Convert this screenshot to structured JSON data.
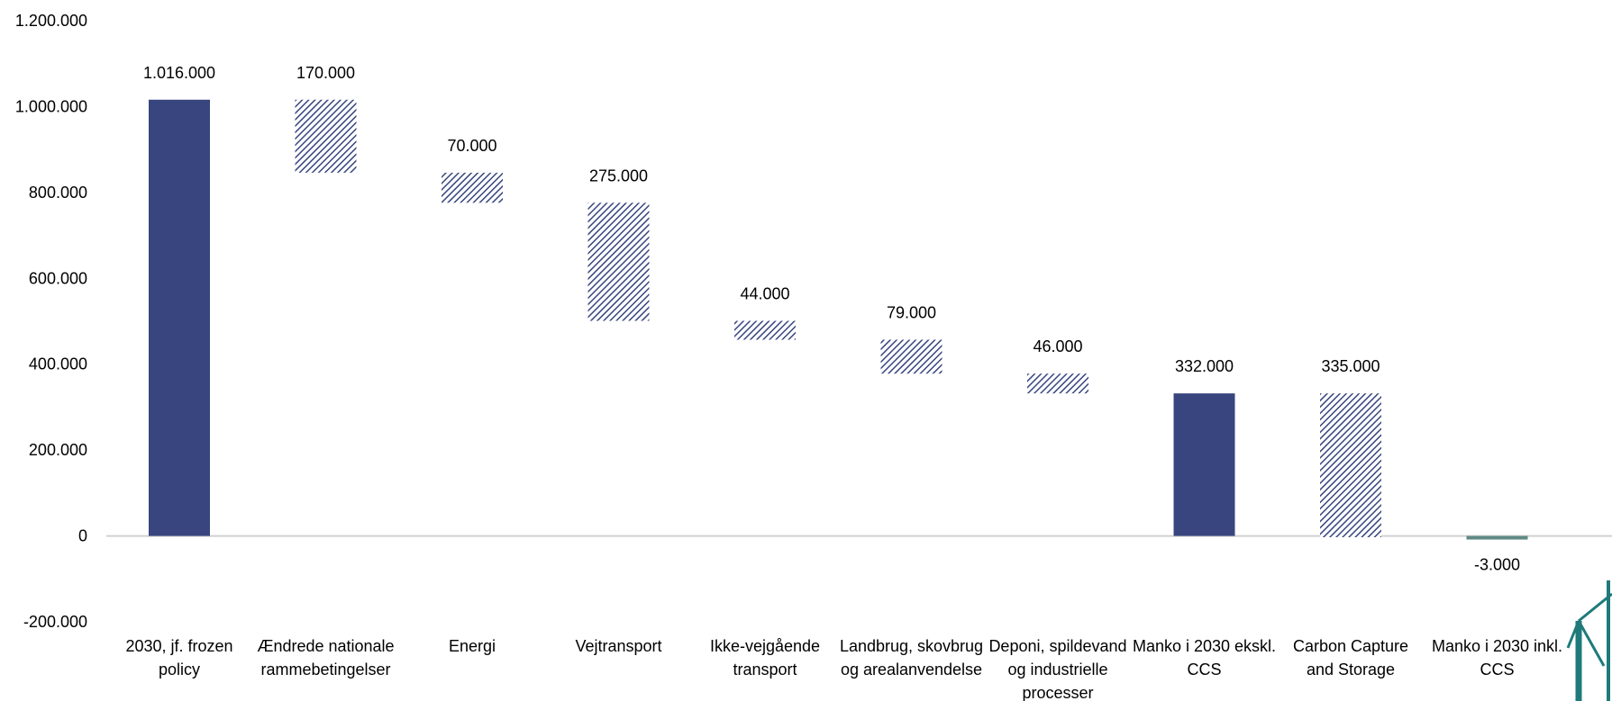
{
  "chart_data": {
    "type": "bar",
    "subtype": "waterfall",
    "title": "",
    "xlabel": "",
    "ylabel": "",
    "ylim": [
      -200000,
      1200000
    ],
    "y_ticks": [
      -200000,
      0,
      200000,
      400000,
      600000,
      800000,
      1000000,
      1200000
    ],
    "y_tick_labels": [
      "-200.000",
      "0",
      "200.000",
      "400.000",
      "600.000",
      "800.000",
      "1.000.000",
      "1.200.000"
    ],
    "grid": false,
    "legend": "none",
    "categories": [
      [
        "2030, jf. frozen",
        "policy"
      ],
      [
        "Ændrede nationale",
        "rammebetingelser"
      ],
      [
        "Energi"
      ],
      [
        "Vejtransport"
      ],
      [
        "Ikke-vejgående",
        "transport"
      ],
      [
        "Landbrug, skovbrug",
        "og arealanvendelse"
      ],
      [
        "Deponi, spildevand",
        "og industrielle",
        "processer"
      ],
      [
        "Manko i 2030 ekskl.",
        "CCS"
      ],
      [
        "Carbon Capture",
        "and Storage"
      ],
      [
        "Manko i 2030 inkl.",
        "CCS"
      ]
    ],
    "bars": [
      {
        "kind": "total",
        "start": 0,
        "end": 1016000,
        "label": "1.016.000"
      },
      {
        "kind": "reduction",
        "start": 1016000,
        "end": 846000,
        "label": "170.000"
      },
      {
        "kind": "reduction",
        "start": 846000,
        "end": 776000,
        "label": "70.000"
      },
      {
        "kind": "reduction",
        "start": 776000,
        "end": 501000,
        "label": "275.000"
      },
      {
        "kind": "reduction",
        "start": 501000,
        "end": 457000,
        "label": "44.000"
      },
      {
        "kind": "reduction",
        "start": 457000,
        "end": 378000,
        "label": "79.000"
      },
      {
        "kind": "reduction",
        "start": 378000,
        "end": 332000,
        "label": "46.000"
      },
      {
        "kind": "total",
        "start": 0,
        "end": 332000,
        "label": "332.000"
      },
      {
        "kind": "reduction",
        "start": 332000,
        "end": -3000,
        "label": "335.000"
      },
      {
        "kind": "net",
        "start": 0,
        "end": -3000,
        "label": "-3.000"
      }
    ],
    "colors": {
      "total": "#38457f",
      "reduction_pattern": "#38457f",
      "net": "#5f8a86",
      "axis_line": "#d0d0d0"
    }
  },
  "decoration": {
    "name": "wind-turbine-logo",
    "color": "#1f7a7a"
  }
}
